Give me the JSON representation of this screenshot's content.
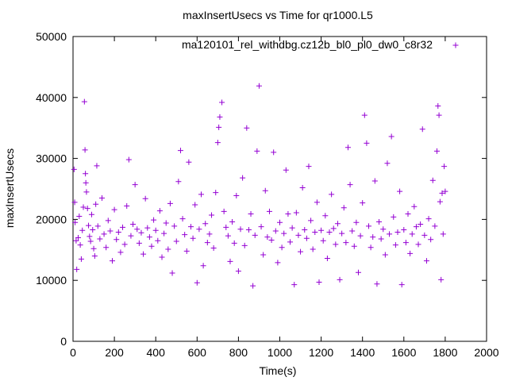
{
  "chart_data": {
    "type": "scatter",
    "title": "maxInsertUsecs vs Time for qr1000.L5",
    "xlabel": "Time(s)",
    "ylabel": "maxInsertUsecs",
    "xlim": [
      0,
      2000
    ],
    "ylim": [
      0,
      50000
    ],
    "x_ticks": [
      "0",
      "200",
      "400",
      "600",
      "800",
      "1000",
      "1200",
      "1400",
      "1600",
      "1800",
      "2000"
    ],
    "y_ticks": [
      "0",
      "10000",
      "20000",
      "30000",
      "40000",
      "50000"
    ],
    "grid": false,
    "legend_position": "top-right",
    "marker": "plus",
    "series": [
      {
        "name": "ma120101_rel_withdbg.cz12b_bl0_pl0_dw0_c8r32",
        "color": "#9400d3",
        "points": [
          [
            5,
            28200
          ],
          [
            8,
            22800
          ],
          [
            10,
            19500
          ],
          [
            15,
            16500
          ],
          [
            18,
            11800
          ],
          [
            25,
            17000
          ],
          [
            30,
            20500
          ],
          [
            35,
            15800
          ],
          [
            40,
            13500
          ],
          [
            45,
            18200
          ],
          [
            50,
            22000
          ],
          [
            55,
            39300
          ],
          [
            58,
            31400
          ],
          [
            60,
            27500
          ],
          [
            62,
            26000
          ],
          [
            65,
            24500
          ],
          [
            70,
            21800
          ],
          [
            75,
            19000
          ],
          [
            80,
            17200
          ],
          [
            85,
            16400
          ],
          [
            90,
            20800
          ],
          [
            95,
            18300
          ],
          [
            100,
            15200
          ],
          [
            105,
            14000
          ],
          [
            110,
            22500
          ],
          [
            115,
            28800
          ],
          [
            120,
            18900
          ],
          [
            130,
            16800
          ],
          [
            140,
            23500
          ],
          [
            150,
            17600
          ],
          [
            160,
            15400
          ],
          [
            170,
            19800
          ],
          [
            180,
            18100
          ],
          [
            190,
            13200
          ],
          [
            200,
            21600
          ],
          [
            210,
            16700
          ],
          [
            220,
            17900
          ],
          [
            230,
            14600
          ],
          [
            240,
            18700
          ],
          [
            250,
            15900
          ],
          [
            260,
            22200
          ],
          [
            270,
            29800
          ],
          [
            280,
            17300
          ],
          [
            290,
            19200
          ],
          [
            300,
            25700
          ],
          [
            310,
            18400
          ],
          [
            320,
            16100
          ],
          [
            330,
            17800
          ],
          [
            340,
            14300
          ],
          [
            350,
            23400
          ],
          [
            360,
            18600
          ],
          [
            370,
            17100
          ],
          [
            380,
            15600
          ],
          [
            390,
            19900
          ],
          [
            400,
            18200
          ],
          [
            410,
            16500
          ],
          [
            420,
            21400
          ],
          [
            430,
            13800
          ],
          [
            440,
            17700
          ],
          [
            450,
            19400
          ],
          [
            460,
            15100
          ],
          [
            470,
            22600
          ],
          [
            480,
            11200
          ],
          [
            490,
            18900
          ],
          [
            500,
            16400
          ],
          [
            510,
            26200
          ],
          [
            520,
            31300
          ],
          [
            530,
            20100
          ],
          [
            540,
            17500
          ],
          [
            550,
            14800
          ],
          [
            560,
            29400
          ],
          [
            570,
            18800
          ],
          [
            580,
            16900
          ],
          [
            590,
            22400
          ],
          [
            600,
            9600
          ],
          [
            610,
            18400
          ],
          [
            620,
            24100
          ],
          [
            630,
            12400
          ],
          [
            640,
            19300
          ],
          [
            650,
            16200
          ],
          [
            660,
            17600
          ],
          [
            670,
            20700
          ],
          [
            680,
            15300
          ],
          [
            690,
            24400
          ],
          [
            700,
            32600
          ],
          [
            705,
            35100
          ],
          [
            710,
            36800
          ],
          [
            720,
            39200
          ],
          [
            730,
            21300
          ],
          [
            740,
            18700
          ],
          [
            750,
            17300
          ],
          [
            760,
            13100
          ],
          [
            770,
            19600
          ],
          [
            780,
            16100
          ],
          [
            790,
            23900
          ],
          [
            800,
            11500
          ],
          [
            810,
            18400
          ],
          [
            820,
            26800
          ],
          [
            830,
            15700
          ],
          [
            840,
            35000
          ],
          [
            850,
            18300
          ],
          [
            860,
            20900
          ],
          [
            870,
            9100
          ],
          [
            880,
            17400
          ],
          [
            890,
            31200
          ],
          [
            900,
            41900
          ],
          [
            910,
            18800
          ],
          [
            920,
            14200
          ],
          [
            930,
            24700
          ],
          [
            940,
            17100
          ],
          [
            950,
            21300
          ],
          [
            960,
            16600
          ],
          [
            970,
            31000
          ],
          [
            980,
            18100
          ],
          [
            990,
            12900
          ],
          [
            1000,
            19500
          ],
          [
            1010,
            15400
          ],
          [
            1020,
            17700
          ],
          [
            1030,
            28100
          ],
          [
            1040,
            20900
          ],
          [
            1050,
            16300
          ],
          [
            1060,
            18600
          ],
          [
            1070,
            9300
          ],
          [
            1080,
            21100
          ],
          [
            1090,
            17400
          ],
          [
            1100,
            14700
          ],
          [
            1110,
            25200
          ],
          [
            1120,
            18300
          ],
          [
            1130,
            16900
          ],
          [
            1140,
            28700
          ],
          [
            1150,
            19800
          ],
          [
            1160,
            15100
          ],
          [
            1170,
            17900
          ],
          [
            1180,
            22800
          ],
          [
            1190,
            9700
          ],
          [
            1200,
            18200
          ],
          [
            1210,
            16500
          ],
          [
            1220,
            20600
          ],
          [
            1230,
            13600
          ],
          [
            1240,
            17900
          ],
          [
            1250,
            24100
          ],
          [
            1260,
            18500
          ],
          [
            1270,
            15900
          ],
          [
            1280,
            19300
          ],
          [
            1290,
            10100
          ],
          [
            1300,
            17700
          ],
          [
            1310,
            21900
          ],
          [
            1320,
            16200
          ],
          [
            1330,
            31800
          ],
          [
            1340,
            25700
          ],
          [
            1350,
            18100
          ],
          [
            1360,
            15600
          ],
          [
            1370,
            19500
          ],
          [
            1380,
            11300
          ],
          [
            1390,
            17300
          ],
          [
            1400,
            22700
          ],
          [
            1410,
            37100
          ],
          [
            1420,
            32500
          ],
          [
            1430,
            18900
          ],
          [
            1440,
            15400
          ],
          [
            1450,
            17100
          ],
          [
            1460,
            26300
          ],
          [
            1470,
            9400
          ],
          [
            1480,
            19600
          ],
          [
            1490,
            16800
          ],
          [
            1500,
            18400
          ],
          [
            1510,
            14200
          ],
          [
            1520,
            29200
          ],
          [
            1530,
            17600
          ],
          [
            1540,
            33600
          ],
          [
            1550,
            20400
          ],
          [
            1560,
            15800
          ],
          [
            1570,
            17900
          ],
          [
            1580,
            24600
          ],
          [
            1590,
            9300
          ],
          [
            1600,
            18300
          ],
          [
            1610,
            16200
          ],
          [
            1620,
            20900
          ],
          [
            1630,
            14400
          ],
          [
            1640,
            17600
          ],
          [
            1650,
            22100
          ],
          [
            1660,
            18800
          ],
          [
            1670,
            15900
          ],
          [
            1680,
            19200
          ],
          [
            1690,
            34800
          ],
          [
            1700,
            17400
          ],
          [
            1710,
            13200
          ],
          [
            1720,
            20100
          ],
          [
            1730,
            16700
          ],
          [
            1740,
            26400
          ],
          [
            1750,
            18900
          ],
          [
            1760,
            31200
          ],
          [
            1765,
            38600
          ],
          [
            1770,
            37100
          ],
          [
            1775,
            22900
          ],
          [
            1780,
            10100
          ],
          [
            1785,
            24300
          ],
          [
            1790,
            17600
          ],
          [
            1795,
            28700
          ],
          [
            1800,
            24600
          ]
        ]
      }
    ]
  }
}
